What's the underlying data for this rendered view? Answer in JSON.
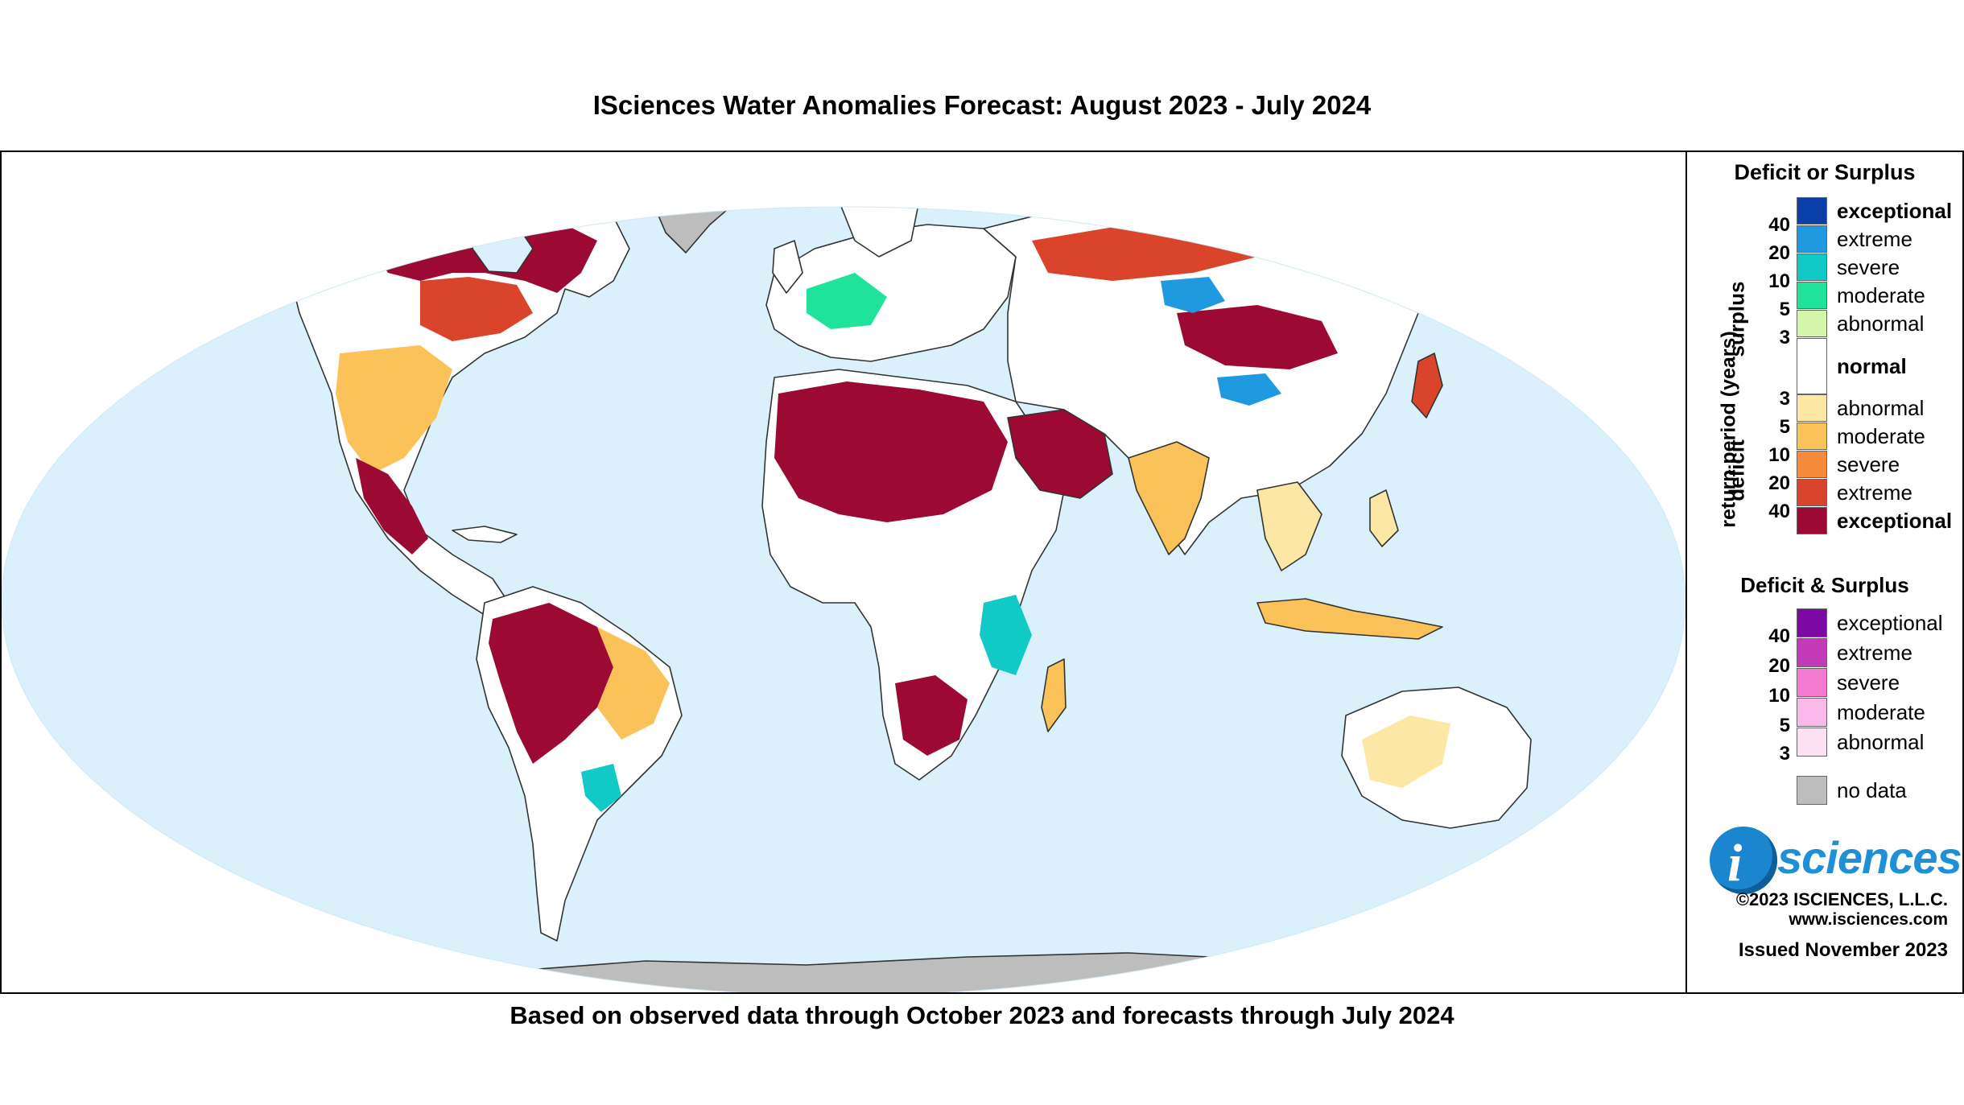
{
  "title": "ISciences Water Anomalies Forecast: August 2023 - July 2024",
  "subtitle": "Based on observed data through October 2023 and forecasts through July 2024",
  "map": {
    "projection": "Robinson world map",
    "colors": {
      "ocean": "#daf1fb",
      "land_normal": "#ffffff",
      "no_data": "#bdbdbd",
      "border": "#333333"
    }
  },
  "legend": {
    "heading1": "Deficit or Surplus",
    "axis_label": "return period (years)",
    "surplus_label": "surplus",
    "deficit_label": "deficit",
    "surplus": [
      {
        "label": "exceptional",
        "color": "#0a3fa8",
        "bold": true
      },
      {
        "label": "extreme",
        "color": "#1f9ae0",
        "bold": false
      },
      {
        "label": "severe",
        "color": "#11c9c7",
        "bold": false
      },
      {
        "label": "moderate",
        "color": "#1fe39a",
        "bold": false
      },
      {
        "label": "abnormal",
        "color": "#d2f7a8",
        "bold": false
      }
    ],
    "surplus_ticks": [
      "40",
      "20",
      "10",
      "5",
      "3"
    ],
    "normal": {
      "label": "normal",
      "color": "#ffffff"
    },
    "deficit": [
      {
        "label": "abnormal",
        "color": "#fde7a4",
        "bold": false
      },
      {
        "label": "moderate",
        "color": "#fbc25a",
        "bold": false
      },
      {
        "label": "severe",
        "color": "#f68a3b",
        "bold": false
      },
      {
        "label": "extreme",
        "color": "#d9442a",
        "bold": false
      },
      {
        "label": "exceptional",
        "color": "#9c0a33",
        "bold": true
      }
    ],
    "deficit_ticks": [
      "3",
      "5",
      "10",
      "20",
      "40"
    ],
    "heading2": "Deficit & Surplus",
    "both": [
      {
        "label": "exceptional",
        "color": "#7d0aa3"
      },
      {
        "label": "extreme",
        "color": "#c23ab8"
      },
      {
        "label": "severe",
        "color": "#f57bd2"
      },
      {
        "label": "moderate",
        "color": "#fbb8ea"
      },
      {
        "label": "abnormal",
        "color": "#fde0f1"
      }
    ],
    "both_ticks": [
      "40",
      "20",
      "10",
      "5",
      "3"
    ],
    "no_data_label": "no data",
    "no_data_color": "#bdbdbd"
  },
  "brand": {
    "logo_text": "sciences",
    "logo_i": "i",
    "copyright": "©2023 ISCIENCES, L.L.C.",
    "website": "www.isciences.com",
    "issued": "Issued November 2023"
  }
}
